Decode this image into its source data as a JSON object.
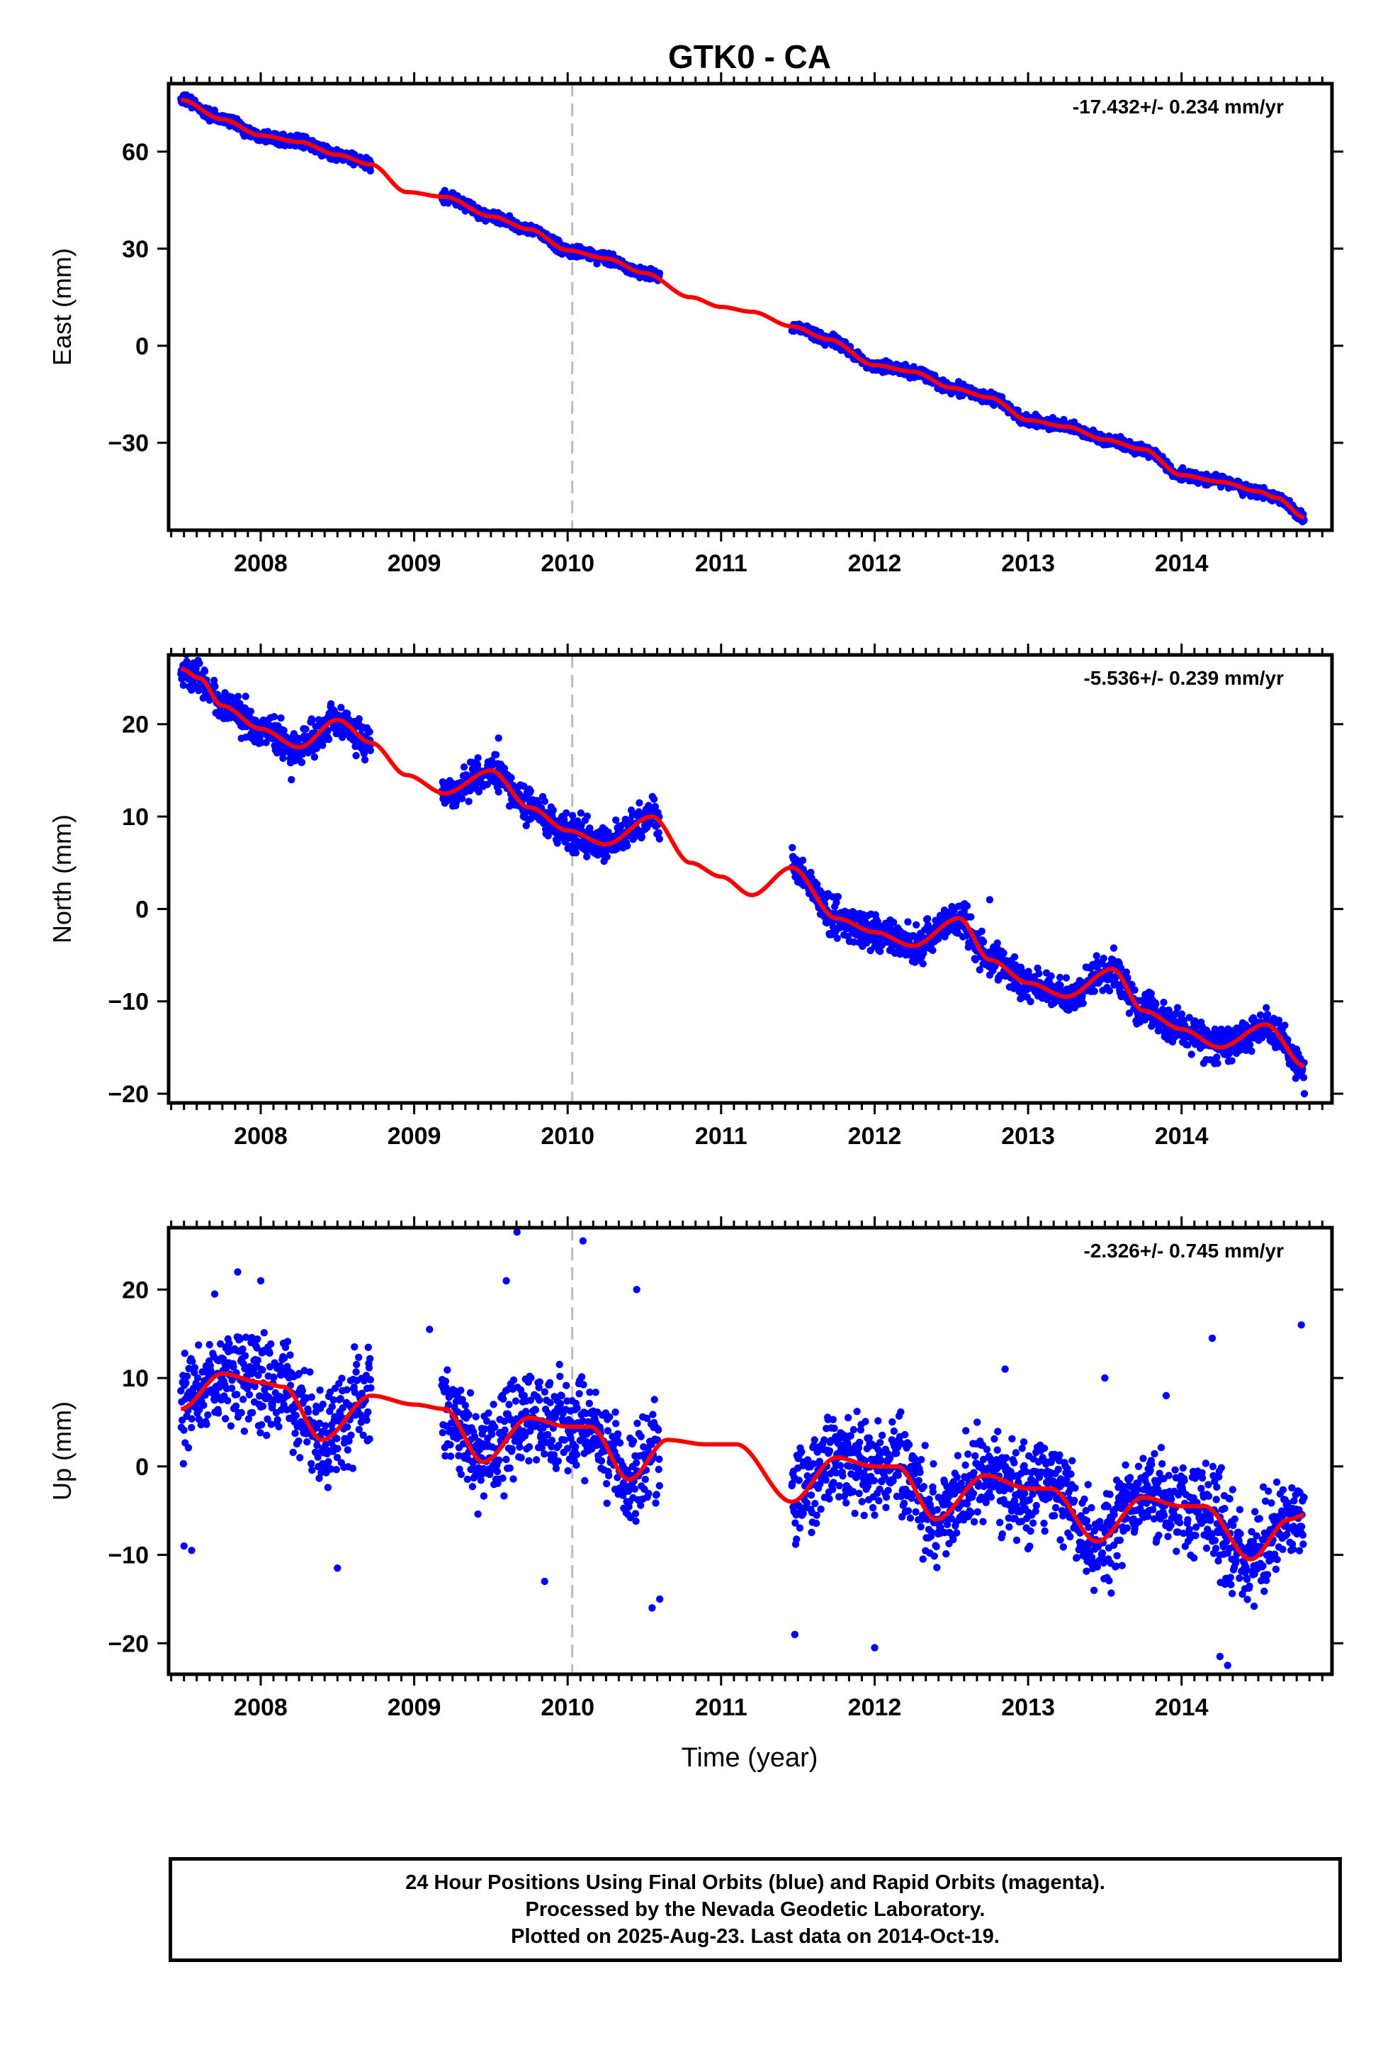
{
  "chart_data": {
    "title": "GTK0 - CA",
    "type": "scatter",
    "x_range": [
      2007.4,
      2014.98
    ],
    "x_ticks": [
      2008,
      2009,
      2010,
      2011,
      2012,
      2013,
      2014
    ],
    "x_tick_labels": [
      "2008",
      "2009",
      "2010",
      "2011",
      "2012",
      "2013",
      "2014"
    ],
    "xlabel": "Time (year)",
    "reference_line_x": 2010.03,
    "data_span": [
      2007.48,
      2014.8
    ],
    "data_gaps": [
      [
        2008.72,
        2009.18
      ],
      [
        2010.6,
        2011.46
      ]
    ],
    "point_color": "#0000ff",
    "fit_color": "#ff0000",
    "reference_line_color": "#bbbbbb",
    "panels": [
      {
        "id": "east",
        "ylabel": "East (mm)",
        "rate_label": "-17.432+/- 0.234 mm/yr",
        "ylim": [
          -57,
          81
        ],
        "yticks": [
          60,
          30,
          0,
          -30
        ],
        "ytick_labels": [
          "60",
          "30",
          "0",
          "−30"
        ],
        "scatter_half_width": 1.5,
        "fit_points": [
          [
            2007.48,
            76
          ],
          [
            2007.75,
            70
          ],
          [
            2008.0,
            65
          ],
          [
            2008.25,
            63
          ],
          [
            2008.5,
            59
          ],
          [
            2008.72,
            56
          ],
          [
            2008.95,
            47.5
          ],
          [
            2009.2,
            46
          ],
          [
            2009.5,
            40
          ],
          [
            2009.75,
            36
          ],
          [
            2010.0,
            29.5
          ],
          [
            2010.25,
            27
          ],
          [
            2010.5,
            22.5
          ],
          [
            2010.8,
            15
          ],
          [
            2011.0,
            12
          ],
          [
            2011.2,
            10.5
          ],
          [
            2011.46,
            6
          ],
          [
            2011.7,
            2
          ],
          [
            2012.0,
            -6
          ],
          [
            2012.25,
            -8
          ],
          [
            2012.5,
            -13
          ],
          [
            2012.75,
            -16
          ],
          [
            2013.0,
            -23
          ],
          [
            2013.25,
            -25
          ],
          [
            2013.5,
            -29
          ],
          [
            2013.75,
            -32
          ],
          [
            2014.0,
            -40
          ],
          [
            2014.25,
            -42
          ],
          [
            2014.5,
            -45
          ],
          [
            2014.62,
            -47
          ],
          [
            2014.8,
            -53
          ]
        ],
        "outliers": [
          [
            2014.79,
            -54
          ]
        ]
      },
      {
        "id": "north",
        "ylabel": "North (mm)",
        "rate_label": "-5.536+/- 0.239 mm/yr",
        "ylim": [
          -21,
          27.5
        ],
        "yticks": [
          20,
          10,
          0,
          -10,
          -20
        ],
        "ytick_labels": [
          "20",
          "10",
          "0",
          "−10",
          "−20"
        ],
        "scatter_half_width": 1.6,
        "fit_points": [
          [
            2007.48,
            26
          ],
          [
            2007.6,
            25
          ],
          [
            2007.75,
            22
          ],
          [
            2008.0,
            19.5
          ],
          [
            2008.25,
            17.5
          ],
          [
            2008.5,
            20.5
          ],
          [
            2008.72,
            18
          ],
          [
            2008.95,
            14.5
          ],
          [
            2009.2,
            12.5
          ],
          [
            2009.5,
            15
          ],
          [
            2009.75,
            11
          ],
          [
            2010.0,
            8.5
          ],
          [
            2010.25,
            7
          ],
          [
            2010.55,
            10
          ],
          [
            2010.8,
            5
          ],
          [
            2011.0,
            3.5
          ],
          [
            2011.2,
            1.5
          ],
          [
            2011.46,
            4.5
          ],
          [
            2011.75,
            -1
          ],
          [
            2012.0,
            -2.5
          ],
          [
            2012.25,
            -4
          ],
          [
            2012.55,
            -1
          ],
          [
            2012.75,
            -5.5
          ],
          [
            2013.0,
            -8
          ],
          [
            2013.25,
            -9.5
          ],
          [
            2013.55,
            -6.5
          ],
          [
            2013.75,
            -11
          ],
          [
            2014.0,
            -13
          ],
          [
            2014.25,
            -15
          ],
          [
            2014.55,
            -12.5
          ],
          [
            2014.8,
            -17
          ]
        ],
        "outliers": [
          [
            2008.2,
            14
          ],
          [
            2014.8,
            -20
          ],
          [
            2012.75,
            1
          ],
          [
            2009.55,
            18.5
          ]
        ]
      },
      {
        "id": "up",
        "ylabel": "Up (mm)",
        "rate_label": "-2.326+/- 0.745 mm/yr",
        "ylim": [
          -23.5,
          27
        ],
        "yticks": [
          20,
          10,
          0,
          -10,
          -20
        ],
        "ytick_labels": [
          "20",
          "10",
          "0",
          "−10",
          "−20"
        ],
        "scatter_half_width": 4.5,
        "fit_points": [
          [
            2007.48,
            6.5
          ],
          [
            2007.75,
            10.5
          ],
          [
            2008.0,
            9.5
          ],
          [
            2008.15,
            9
          ],
          [
            2008.4,
            3
          ],
          [
            2008.72,
            8
          ],
          [
            2009.0,
            7
          ],
          [
            2009.2,
            6.5
          ],
          [
            2009.45,
            0.5
          ],
          [
            2009.75,
            5.5
          ],
          [
            2010.0,
            4.5
          ],
          [
            2010.15,
            4.5
          ],
          [
            2010.4,
            -1.5
          ],
          [
            2010.65,
            3
          ],
          [
            2010.9,
            2.5
          ],
          [
            2011.1,
            2.5
          ],
          [
            2011.46,
            -4
          ],
          [
            2011.75,
            1
          ],
          [
            2012.0,
            0
          ],
          [
            2012.15,
            0
          ],
          [
            2012.4,
            -6
          ],
          [
            2012.72,
            -1
          ],
          [
            2013.0,
            -2.5
          ],
          [
            2013.15,
            -2.5
          ],
          [
            2013.45,
            -8.5
          ],
          [
            2013.75,
            -3.5
          ],
          [
            2014.0,
            -4.5
          ],
          [
            2014.15,
            -4.5
          ],
          [
            2014.45,
            -10.5
          ],
          [
            2014.7,
            -6
          ],
          [
            2014.8,
            -5.5
          ]
        ],
        "outliers": [
          [
            2009.67,
            26.5
          ],
          [
            2010.1,
            25.5
          ],
          [
            2010.45,
            20
          ],
          [
            2007.7,
            19.5
          ],
          [
            2007.85,
            22
          ],
          [
            2008.0,
            21
          ],
          [
            2009.6,
            21
          ],
          [
            2007.5,
            -9
          ],
          [
            2007.55,
            -9.5
          ],
          [
            2008.5,
            -11.5
          ],
          [
            2009.85,
            -13
          ],
          [
            2010.55,
            -16
          ],
          [
            2010.6,
            -15
          ],
          [
            2011.48,
            -19
          ],
          [
            2012.0,
            -20.5
          ],
          [
            2014.2,
            14.5
          ],
          [
            2014.78,
            16
          ],
          [
            2014.25,
            -21.5
          ],
          [
            2014.3,
            -22.5
          ],
          [
            2012.85,
            11
          ],
          [
            2013.5,
            10
          ],
          [
            2013.9,
            8
          ],
          [
            2009.1,
            15.5
          ]
        ]
      }
    ]
  },
  "footer": {
    "line1": "24 Hour Positions Using Final Orbits (blue) and Rapid Orbits (magenta).",
    "line2": "Processed by the Nevada Geodetic Laboratory.",
    "line3": "Plotted on 2025-Aug-23. Last data on 2014-Oct-19."
  }
}
